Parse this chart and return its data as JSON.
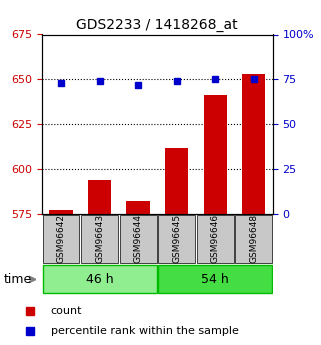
{
  "title": "GDS2233 / 1418268_at",
  "categories": [
    "GSM96642",
    "GSM96643",
    "GSM96644",
    "GSM96645",
    "GSM96646",
    "GSM96648"
  ],
  "red_values": [
    577,
    594,
    582,
    612,
    641,
    653
  ],
  "blue_values": [
    73,
    74,
    72,
    74,
    75,
    75
  ],
  "ylim_left": [
    575,
    675
  ],
  "ylim_right": [
    0,
    100
  ],
  "yticks_left": [
    575,
    600,
    625,
    650,
    675
  ],
  "yticks_right": [
    0,
    25,
    50,
    75,
    100
  ],
  "yticks_right_labels": [
    "0",
    "25",
    "50",
    "75",
    "100%"
  ],
  "group1_label": "46 h",
  "group2_label": "54 h",
  "group1_indices": [
    0,
    1,
    2
  ],
  "group2_indices": [
    3,
    4,
    5
  ],
  "red_color": "#cc0000",
  "blue_color": "#0000cc",
  "legend_red": "count",
  "legend_blue": "percentile rank within the sample",
  "bar_width": 0.6,
  "group_bg_light": "#c8c8c8",
  "group_band_light": "#90ee90",
  "group_band_dark": "#44dd44",
  "group_border_color": "#00bb00",
  "time_label": "time",
  "gridline_values": [
    600,
    625,
    650
  ]
}
